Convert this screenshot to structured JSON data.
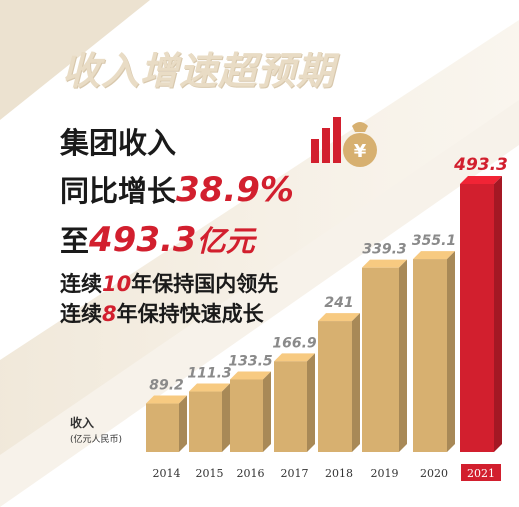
{
  "title": "收入增速超预期",
  "text": {
    "line1": "集团收入",
    "line2_prefix": "同比增长",
    "line2_value": "38.9%",
    "line3_prefix": "至",
    "line3_value": "493.3",
    "line3_suffix": "亿元",
    "line4_prefix": "连续",
    "line4_num": "10",
    "line4_suffix": "年保持国内领先",
    "line5_prefix": "连续",
    "line5_num": "8",
    "line5_suffix": "年保持快速成长"
  },
  "unit": {
    "title": "收入",
    "sub": "(亿元人民币)"
  },
  "icons": [
    "bar-chart-icon",
    "money-bag-icon"
  ],
  "colors": {
    "bar": "#d7b070",
    "highlight": "#d21f2e",
    "text": "#1a1a1a",
    "title": "#e9dcc5"
  },
  "chart_data": {
    "type": "bar",
    "categories": [
      "2014",
      "2015",
      "2016",
      "2017",
      "2018",
      "2019",
      "2020",
      "2021"
    ],
    "values": [
      89.2,
      111.3,
      133.5,
      166.9,
      241,
      339.3,
      355.1,
      493.3
    ],
    "value_labels": [
      "89.2",
      "111.3",
      "133.5",
      "166.9",
      "241",
      "339.3",
      "355.1",
      "493.3"
    ],
    "highlight_index": 7,
    "ylim": [
      0,
      500
    ]
  }
}
